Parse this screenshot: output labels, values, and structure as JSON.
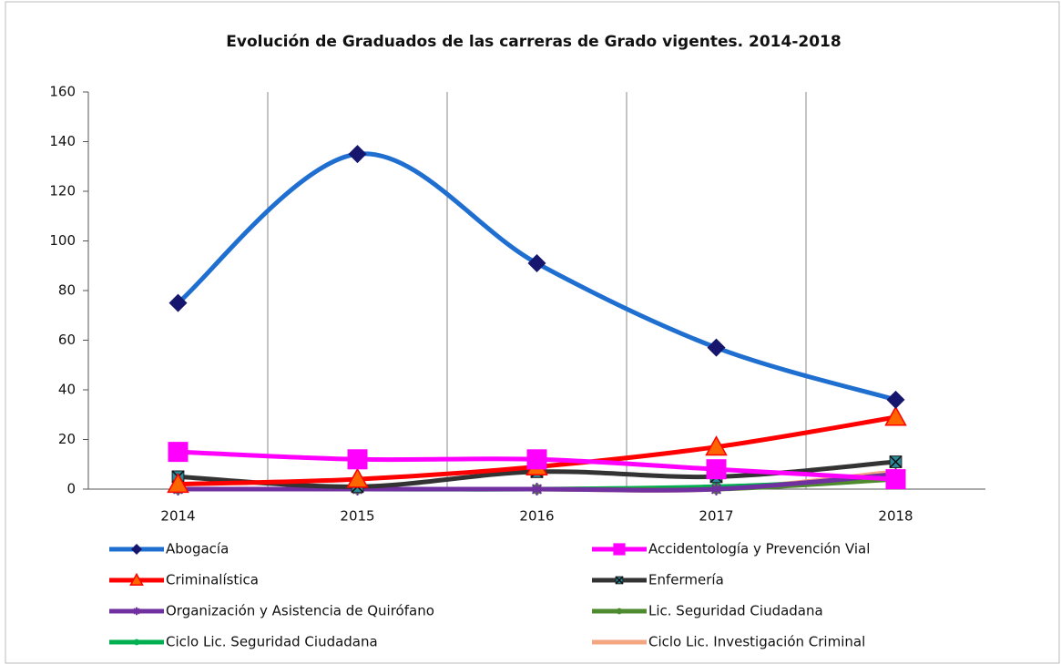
{
  "chart_data": {
    "type": "line",
    "title": "Evolución de Graduados de las carreras de Grado vigentes. 2014-2018",
    "categories": [
      "2014",
      "2015",
      "2016",
      "2017",
      "2018"
    ],
    "ylim": [
      0,
      160
    ],
    "yticks": [
      0,
      20,
      40,
      60,
      80,
      100,
      120,
      140,
      160
    ],
    "grid": true,
    "smooth": true,
    "legend": "bottom",
    "series": [
      {
        "name": "Abogacía",
        "color": "#1f6fd0",
        "marker": "diamond",
        "marker_color": "#16166e",
        "values": [
          75,
          135,
          91,
          57,
          36
        ]
      },
      {
        "name": "Accidentología y Prevención Vial",
        "color": "#ff00ff",
        "marker": "square",
        "marker_color": "#ff00ff",
        "values": [
          15,
          12,
          12,
          8,
          4
        ]
      },
      {
        "name": "Criminalística",
        "color": "#ff0000",
        "marker": "triangle",
        "marker_color": "#ff6600",
        "values": [
          2,
          4,
          9,
          17,
          29
        ]
      },
      {
        "name": "Enfermería",
        "color": "#333333",
        "marker": "xsquare",
        "marker_color": "#2a8a9a",
        "values": [
          5,
          1,
          7,
          5,
          11
        ]
      },
      {
        "name": "Organización y Asistencia de Quirófano",
        "color": "#7030a0",
        "marker": "star",
        "marker_color": "#7030a0",
        "values": [
          0,
          0,
          0,
          0,
          6
        ]
      },
      {
        "name": "Lic. Seguridad Ciudadana",
        "color": "#4e8a2e",
        "marker": "circle",
        "marker_color": "#4e8a2e",
        "values": [
          0,
          0,
          0,
          0,
          4
        ]
      },
      {
        "name": "Ciclo Lic. Seguridad Ciudadana",
        "color": "#00b050",
        "marker": "circle",
        "marker_color": "#00b050",
        "values": [
          0,
          0,
          0,
          1,
          4
        ]
      },
      {
        "name": "Ciclo Lic. Investigación Criminal",
        "color": "#f4a582",
        "marker": "none",
        "marker_color": "#f4a582",
        "values": [
          0,
          0,
          0,
          0,
          7
        ]
      }
    ]
  }
}
